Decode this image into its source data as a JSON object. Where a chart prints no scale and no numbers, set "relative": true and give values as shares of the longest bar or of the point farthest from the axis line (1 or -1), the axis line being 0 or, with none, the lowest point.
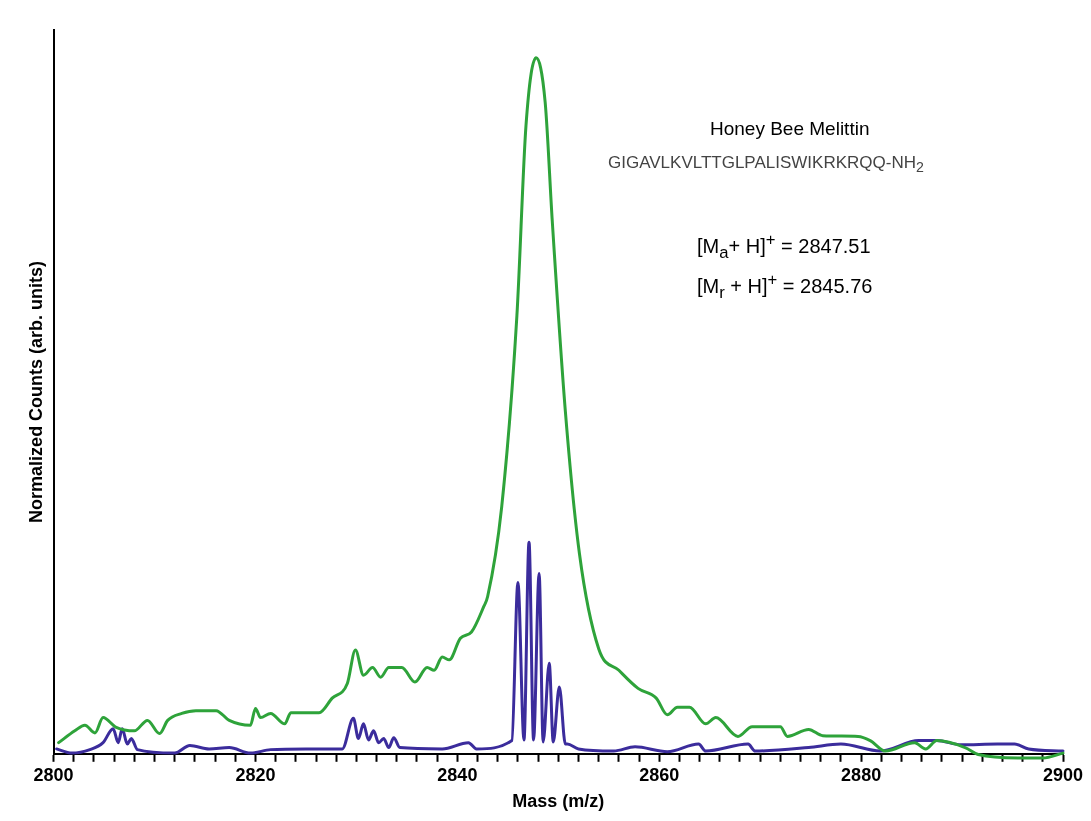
{
  "chart_data": {
    "type": "line",
    "relative": true,
    "xlabel": "Mass (m/z)",
    "ylabel": "Normalized Counts (arb. units)",
    "legend": false,
    "grid": false,
    "marker": "none",
    "line_style": "solid",
    "xlim": [
      2800,
      2900
    ],
    "xticks": [
      2800,
      {
        "value": 2802,
        "label": null
      },
      {
        "value": 2804,
        "label": null
      },
      {
        "value": 2806,
        "label": null
      },
      {
        "value": 2808,
        "label": null
      },
      {
        "value": 2810,
        "label": null
      },
      {
        "value": 2812,
        "label": null
      },
      {
        "value": 2814,
        "label": null
      },
      {
        "value": 2816,
        "label": null
      },
      {
        "value": 2818,
        "label": null
      },
      2820,
      {
        "value": 2822,
        "label": null
      },
      {
        "value": 2824,
        "label": null
      },
      {
        "value": 2826,
        "label": null
      },
      {
        "value": 2828,
        "label": null
      },
      {
        "value": 2830,
        "label": null
      },
      {
        "value": 2832,
        "label": null
      },
      {
        "value": 2834,
        "label": null
      },
      {
        "value": 2836,
        "label": null
      },
      {
        "value": 2838,
        "label": null
      },
      2840,
      {
        "value": 2842,
        "label": null
      },
      {
        "value": 2844,
        "label": null
      },
      {
        "value": 2846,
        "label": null
      },
      {
        "value": 2848,
        "label": null
      },
      {
        "value": 2850,
        "label": null
      },
      {
        "value": 2852,
        "label": null
      },
      {
        "value": 2854,
        "label": null
      },
      {
        "value": 2856,
        "label": null
      },
      {
        "value": 2858,
        "label": null
      },
      2860,
      {
        "value": 2862,
        "label": null
      },
      {
        "value": 2864,
        "label": null
      },
      {
        "value": 2866,
        "label": null
      },
      {
        "value": 2868,
        "label": null
      },
      {
        "value": 2870,
        "label": null
      },
      {
        "value": 2872,
        "label": null
      },
      {
        "value": 2874,
        "label": null
      },
      {
        "value": 2876,
        "label": null
      },
      {
        "value": 2878,
        "label": null
      },
      2880,
      {
        "value": 2882,
        "label": null
      },
      {
        "value": 2884,
        "label": null
      },
      {
        "value": 2886,
        "label": null
      },
      {
        "value": 2888,
        "label": null
      },
      {
        "value": 2890,
        "label": null
      },
      {
        "value": 2892,
        "label": null
      },
      {
        "value": 2894,
        "label": null
      },
      {
        "value": 2896,
        "label": null
      },
      {
        "value": 2898,
        "label": null
      },
      2900
    ],
    "annotations": [
      "Honey Bee Melittin",
      "GIGAVLKVLTTGLPALISWIKRKRQQ-NH$_{2}$",
      "[M$_{a}$+ H]$^{+}$ = 2847.51",
      "[M$_{r}$ + H]$^{+}$ = 2845.76"
    ],
    "series": [
      {
        "color": "#2ea33a",
        "x": [
          2800.5,
          2802.1,
          2803.1,
          2804.1,
          2804.9,
          2806.2,
          2808.0,
          2809.3,
          2810.5,
          2811.3,
          2812.7,
          2814.1,
          2816.1,
          2817.4,
          2819.5,
          2820.0,
          2820.5,
          2821.5,
          2822.9,
          2823.5,
          2826.3,
          2827.6,
          2829.1,
          2829.9,
          2830.7,
          2831.6,
          2832.4,
          2833.2,
          2834.5,
          2835.8,
          2837.0,
          2837.7,
          2838.5,
          2839.2,
          2840.3,
          2841.4,
          2842.6,
          2843.0,
          2844.4,
          2845.9,
          2846.8,
          2847.8,
          2848.7,
          2849.4,
          2850.7,
          2852.1,
          2854.0,
          2856.0,
          2857.9,
          2859.7,
          2860.8,
          2861.8,
          2863.0,
          2864.6,
          2865.6,
          2867.8,
          2869.2,
          2872.0,
          2872.7,
          2874.8,
          2876.2,
          2879.7,
          2880.9,
          2882.4,
          2885.3,
          2886.4,
          2887.5,
          2890.3,
          2891.6,
          2895.9,
          2898.0,
          2900.0
        ],
        "values": [
          0.016,
          0.033,
          0.041,
          0.03,
          0.052,
          0.038,
          0.033,
          0.048,
          0.029,
          0.048,
          0.058,
          0.062,
          0.062,
          0.048,
          0.041,
          0.065,
          0.052,
          0.058,
          0.043,
          0.059,
          0.059,
          0.08,
          0.101,
          0.149,
          0.113,
          0.124,
          0.11,
          0.124,
          0.124,
          0.103,
          0.124,
          0.12,
          0.139,
          0.135,
          0.166,
          0.175,
          0.211,
          0.226,
          0.356,
          0.63,
          0.903,
          1.0,
          0.936,
          0.766,
          0.492,
          0.287,
          0.151,
          0.12,
          0.094,
          0.08,
          0.056,
          0.067,
          0.067,
          0.043,
          0.052,
          0.025,
          0.039,
          0.039,
          0.025,
          0.035,
          0.026,
          0.025,
          0.019,
          0.004,
          0.016,
          0.007,
          0.019,
          0.009,
          -0.001,
          -0.006,
          -0.006,
          0.001
        ]
      },
      {
        "color": "#3b2c9c",
        "x": [
          2800.3,
          2801.8,
          2803.6,
          2804.9,
          2805.9,
          2806.4,
          2806.8,
          2807.3,
          2807.7,
          2808.3,
          2812.0,
          2813.5,
          2815.4,
          2817.4,
          2819.5,
          2821.5,
          2825.0,
          2828.6,
          2829.7,
          2830.2,
          2830.7,
          2831.2,
          2831.7,
          2832.2,
          2832.7,
          2833.2,
          2833.7,
          2834.3,
          2838.5,
          2841.1,
          2841.9,
          2845.4,
          2846.0,
          2846.6,
          2847.1,
          2847.55,
          2848.1,
          2848.5,
          2849.1,
          2849.5,
          2850.1,
          2850.7,
          2850.9,
          2852.0,
          2855.5,
          2857.6,
          2860.8,
          2863.9,
          2864.6,
          2868.8,
          2869.5,
          2874.8,
          2878.0,
          2881.9,
          2885.7,
          2887.5,
          2889.9,
          2893.5,
          2895.2,
          2896.6,
          2900.0
        ],
        "values": [
          0.007,
          0.001,
          0.006,
          0.016,
          0.036,
          0.016,
          0.036,
          0.014,
          0.022,
          0.006,
          0.001,
          0.012,
          0.007,
          0.009,
          0.001,
          0.006,
          0.007,
          0.007,
          0.051,
          0.022,
          0.043,
          0.02,
          0.033,
          0.016,
          0.022,
          0.009,
          0.023,
          0.009,
          0.007,
          0.016,
          0.007,
          0.019,
          0.246,
          0.02,
          0.304,
          0.02,
          0.259,
          0.017,
          0.13,
          0.017,
          0.096,
          0.014,
          0.014,
          0.007,
          0.004,
          0.01,
          0.003,
          0.014,
          0.004,
          0.014,
          0.004,
          0.009,
          0.014,
          0.004,
          0.019,
          0.019,
          0.013,
          0.014,
          0.014,
          0.007,
          0.004
        ]
      }
    ]
  }
}
